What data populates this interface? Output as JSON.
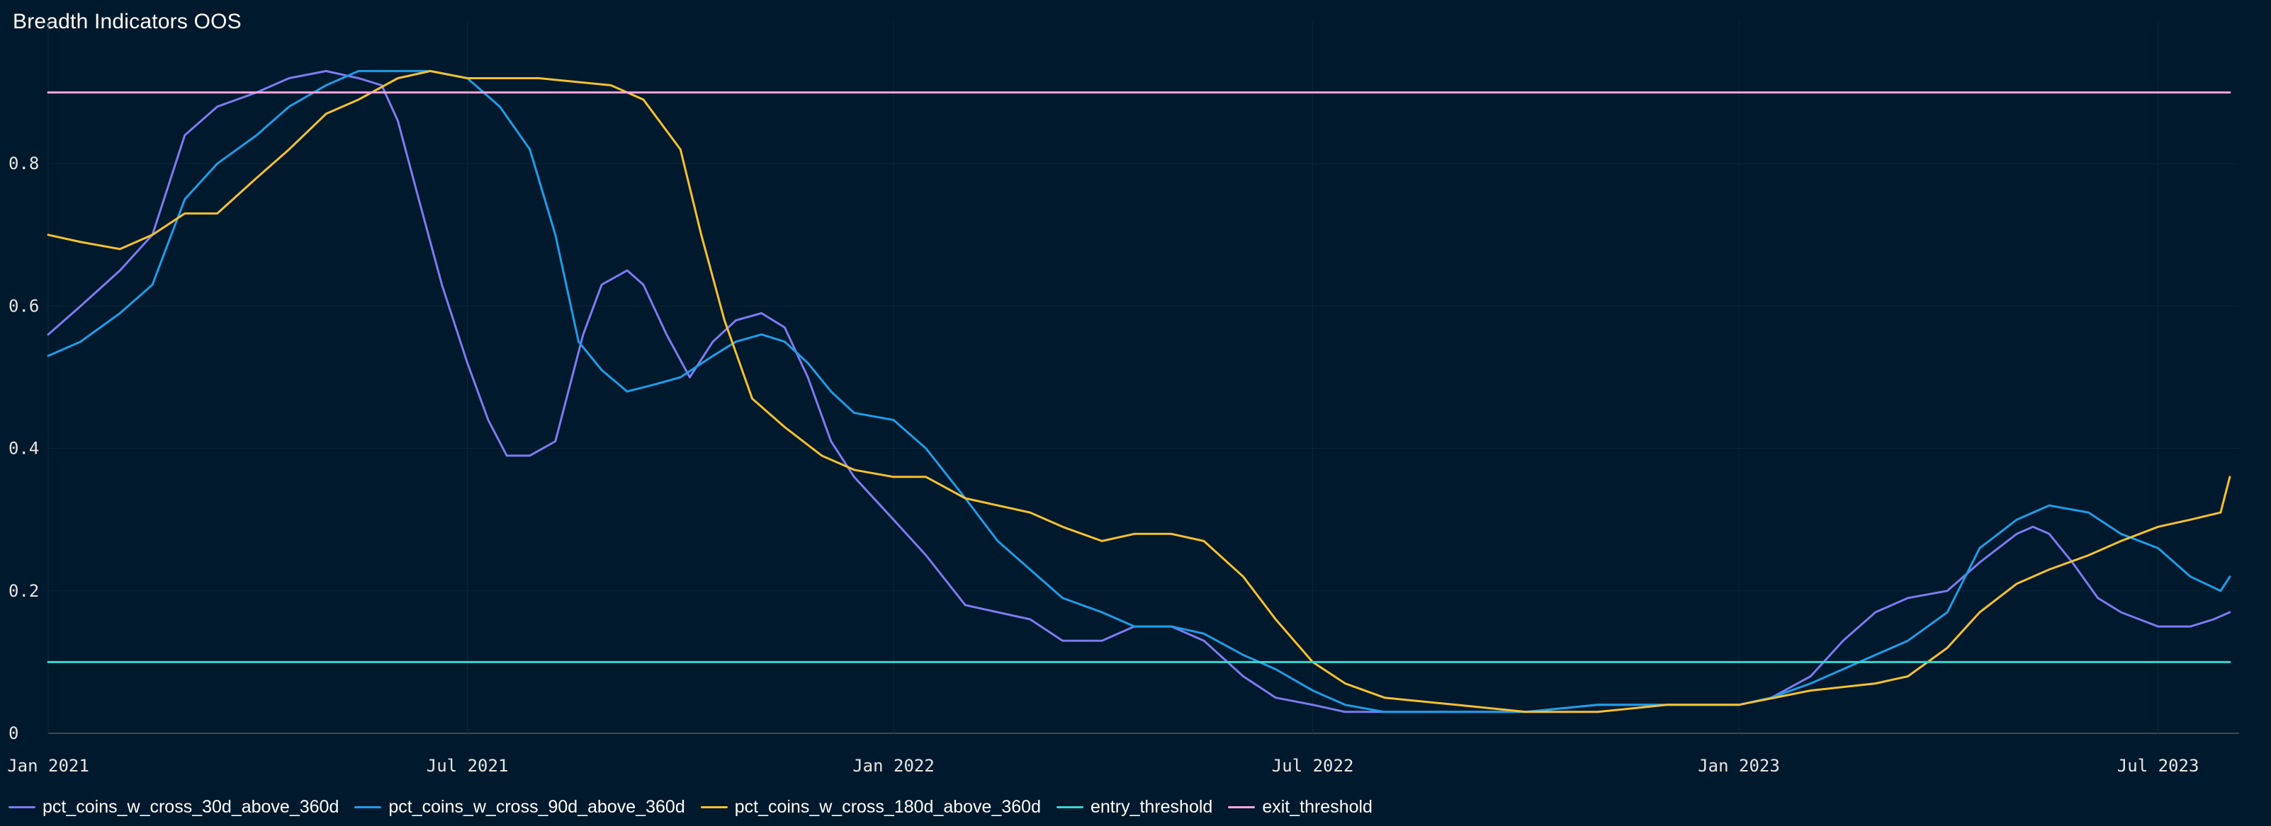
{
  "chart_data": {
    "type": "line",
    "title": "Breadth Indicators OOS",
    "xlabel": "",
    "ylabel": "",
    "x_ticks": [
      "Jan 2021",
      "Jul 2021",
      "Jan 2022",
      "Jul 2022",
      "Jan 2023",
      "Jul 2023"
    ],
    "y_ticks": [
      "0",
      "0.2",
      "0.4",
      "0.6",
      "0.8"
    ],
    "xlim": [
      "2021-01-01",
      "2023-08-05"
    ],
    "ylim": [
      0,
      1.0
    ],
    "grid": true,
    "legend_position": "bottom-left",
    "series": [
      {
        "name": "pct_coins_w_cross_30d_above_360d",
        "color": "#7b7bf0",
        "points": [
          [
            "2021-01-01",
            0.56
          ],
          [
            "2021-01-15",
            0.6
          ],
          [
            "2021-02-01",
            0.65
          ],
          [
            "2021-02-15",
            0.7
          ],
          [
            "2021-03-01",
            0.84
          ],
          [
            "2021-03-15",
            0.88
          ],
          [
            "2021-04-01",
            0.9
          ],
          [
            "2021-04-15",
            0.92
          ],
          [
            "2021-05-01",
            0.93
          ],
          [
            "2021-05-15",
            0.92
          ],
          [
            "2021-05-25",
            0.91
          ],
          [
            "2021-06-01",
            0.86
          ],
          [
            "2021-06-10",
            0.75
          ],
          [
            "2021-06-20",
            0.63
          ],
          [
            "2021-07-01",
            0.52
          ],
          [
            "2021-07-10",
            0.44
          ],
          [
            "2021-07-18",
            0.39
          ],
          [
            "2021-07-28",
            0.39
          ],
          [
            "2021-08-08",
            0.41
          ],
          [
            "2021-08-20",
            0.56
          ],
          [
            "2021-08-28",
            0.63
          ],
          [
            "2021-09-08",
            0.65
          ],
          [
            "2021-09-15",
            0.63
          ],
          [
            "2021-09-25",
            0.56
          ],
          [
            "2021-10-05",
            0.5
          ],
          [
            "2021-10-15",
            0.55
          ],
          [
            "2021-10-25",
            0.58
          ],
          [
            "2021-11-05",
            0.59
          ],
          [
            "2021-11-15",
            0.57
          ],
          [
            "2021-11-25",
            0.5
          ],
          [
            "2021-12-05",
            0.41
          ],
          [
            "2021-12-15",
            0.36
          ],
          [
            "2022-01-01",
            0.3
          ],
          [
            "2022-01-15",
            0.25
          ],
          [
            "2022-02-01",
            0.18
          ],
          [
            "2022-02-15",
            0.17
          ],
          [
            "2022-03-01",
            0.16
          ],
          [
            "2022-03-15",
            0.13
          ],
          [
            "2022-04-01",
            0.13
          ],
          [
            "2022-04-15",
            0.15
          ],
          [
            "2022-05-01",
            0.15
          ],
          [
            "2022-05-15",
            0.13
          ],
          [
            "2022-06-01",
            0.08
          ],
          [
            "2022-06-15",
            0.05
          ],
          [
            "2022-07-01",
            0.04
          ],
          [
            "2022-07-15",
            0.03
          ],
          [
            "2022-08-01",
            0.03
          ],
          [
            "2022-09-01",
            0.03
          ],
          [
            "2022-10-01",
            0.03
          ],
          [
            "2022-11-01",
            0.04
          ],
          [
            "2022-12-01",
            0.04
          ],
          [
            "2023-01-01",
            0.04
          ],
          [
            "2023-01-15",
            0.05
          ],
          [
            "2023-02-01",
            0.08
          ],
          [
            "2023-02-15",
            0.13
          ],
          [
            "2023-03-01",
            0.17
          ],
          [
            "2023-03-15",
            0.19
          ],
          [
            "2023-04-01",
            0.2
          ],
          [
            "2023-04-15",
            0.24
          ],
          [
            "2023-05-01",
            0.28
          ],
          [
            "2023-05-08",
            0.29
          ],
          [
            "2023-05-15",
            0.28
          ],
          [
            "2023-05-25",
            0.24
          ],
          [
            "2023-06-05",
            0.19
          ],
          [
            "2023-06-15",
            0.17
          ],
          [
            "2023-07-01",
            0.15
          ],
          [
            "2023-07-15",
            0.15
          ],
          [
            "2023-07-25",
            0.16
          ],
          [
            "2023-08-01",
            0.17
          ]
        ]
      },
      {
        "name": "pct_coins_w_cross_90d_above_360d",
        "color": "#1e9de8",
        "points": [
          [
            "2021-01-01",
            0.53
          ],
          [
            "2021-01-15",
            0.55
          ],
          [
            "2021-02-01",
            0.59
          ],
          [
            "2021-02-15",
            0.63
          ],
          [
            "2021-03-01",
            0.75
          ],
          [
            "2021-03-15",
            0.8
          ],
          [
            "2021-04-01",
            0.84
          ],
          [
            "2021-04-15",
            0.88
          ],
          [
            "2021-05-01",
            0.91
          ],
          [
            "2021-05-15",
            0.93
          ],
          [
            "2021-06-01",
            0.93
          ],
          [
            "2021-06-15",
            0.93
          ],
          [
            "2021-07-01",
            0.92
          ],
          [
            "2021-07-15",
            0.88
          ],
          [
            "2021-07-28",
            0.82
          ],
          [
            "2021-08-08",
            0.7
          ],
          [
            "2021-08-18",
            0.55
          ],
          [
            "2021-08-28",
            0.51
          ],
          [
            "2021-09-08",
            0.48
          ],
          [
            "2021-09-20",
            0.49
          ],
          [
            "2021-10-01",
            0.5
          ],
          [
            "2021-10-15",
            0.53
          ],
          [
            "2021-10-25",
            0.55
          ],
          [
            "2021-11-05",
            0.56
          ],
          [
            "2021-11-15",
            0.55
          ],
          [
            "2021-11-25",
            0.52
          ],
          [
            "2021-12-05",
            0.48
          ],
          [
            "2021-12-15",
            0.45
          ],
          [
            "2022-01-01",
            0.44
          ],
          [
            "2022-01-15",
            0.4
          ],
          [
            "2022-02-01",
            0.33
          ],
          [
            "2022-02-15",
            0.27
          ],
          [
            "2022-03-01",
            0.23
          ],
          [
            "2022-03-15",
            0.19
          ],
          [
            "2022-04-01",
            0.17
          ],
          [
            "2022-04-15",
            0.15
          ],
          [
            "2022-05-01",
            0.15
          ],
          [
            "2022-05-15",
            0.14
          ],
          [
            "2022-06-01",
            0.11
          ],
          [
            "2022-06-15",
            0.09
          ],
          [
            "2022-07-01",
            0.06
          ],
          [
            "2022-07-15",
            0.04
          ],
          [
            "2022-08-01",
            0.03
          ],
          [
            "2022-09-01",
            0.03
          ],
          [
            "2022-10-01",
            0.03
          ],
          [
            "2022-11-01",
            0.04
          ],
          [
            "2022-12-01",
            0.04
          ],
          [
            "2023-01-01",
            0.04
          ],
          [
            "2023-01-15",
            0.05
          ],
          [
            "2023-02-01",
            0.07
          ],
          [
            "2023-02-15",
            0.09
          ],
          [
            "2023-03-01",
            0.11
          ],
          [
            "2023-03-15",
            0.13
          ],
          [
            "2023-04-01",
            0.17
          ],
          [
            "2023-04-15",
            0.26
          ],
          [
            "2023-05-01",
            0.3
          ],
          [
            "2023-05-15",
            0.32
          ],
          [
            "2023-06-01",
            0.31
          ],
          [
            "2023-06-15",
            0.28
          ],
          [
            "2023-07-01",
            0.26
          ],
          [
            "2023-07-15",
            0.22
          ],
          [
            "2023-07-28",
            0.2
          ],
          [
            "2023-08-01",
            0.22
          ]
        ]
      },
      {
        "name": "pct_coins_w_cross_180d_above_360d",
        "color": "#f6c12f",
        "points": [
          [
            "2021-01-01",
            0.7
          ],
          [
            "2021-01-15",
            0.69
          ],
          [
            "2021-02-01",
            0.68
          ],
          [
            "2021-02-15",
            0.7
          ],
          [
            "2021-03-01",
            0.73
          ],
          [
            "2021-03-15",
            0.73
          ],
          [
            "2021-04-01",
            0.78
          ],
          [
            "2021-04-15",
            0.82
          ],
          [
            "2021-05-01",
            0.87
          ],
          [
            "2021-05-15",
            0.89
          ],
          [
            "2021-06-01",
            0.92
          ],
          [
            "2021-06-15",
            0.93
          ],
          [
            "2021-07-01",
            0.92
          ],
          [
            "2021-08-01",
            0.92
          ],
          [
            "2021-09-01",
            0.91
          ],
          [
            "2021-09-15",
            0.89
          ],
          [
            "2021-10-01",
            0.82
          ],
          [
            "2021-10-10",
            0.7
          ],
          [
            "2021-10-20",
            0.58
          ],
          [
            "2021-11-01",
            0.47
          ],
          [
            "2021-11-15",
            0.43
          ],
          [
            "2021-12-01",
            0.39
          ],
          [
            "2021-12-15",
            0.37
          ],
          [
            "2022-01-01",
            0.36
          ],
          [
            "2022-01-15",
            0.36
          ],
          [
            "2022-02-01",
            0.33
          ],
          [
            "2022-03-01",
            0.31
          ],
          [
            "2022-03-15",
            0.29
          ],
          [
            "2022-04-01",
            0.27
          ],
          [
            "2022-04-15",
            0.28
          ],
          [
            "2022-05-01",
            0.28
          ],
          [
            "2022-05-15",
            0.27
          ],
          [
            "2022-06-01",
            0.22
          ],
          [
            "2022-06-15",
            0.16
          ],
          [
            "2022-07-01",
            0.1
          ],
          [
            "2022-07-15",
            0.07
          ],
          [
            "2022-08-01",
            0.05
          ],
          [
            "2022-09-01",
            0.04
          ],
          [
            "2022-10-01",
            0.03
          ],
          [
            "2022-11-01",
            0.03
          ],
          [
            "2022-12-01",
            0.04
          ],
          [
            "2023-01-01",
            0.04
          ],
          [
            "2023-02-01",
            0.06
          ],
          [
            "2023-03-01",
            0.07
          ],
          [
            "2023-03-15",
            0.08
          ],
          [
            "2023-04-01",
            0.12
          ],
          [
            "2023-04-15",
            0.17
          ],
          [
            "2023-05-01",
            0.21
          ],
          [
            "2023-05-15",
            0.23
          ],
          [
            "2023-06-01",
            0.25
          ],
          [
            "2023-06-15",
            0.27
          ],
          [
            "2023-07-01",
            0.29
          ],
          [
            "2023-07-15",
            0.3
          ],
          [
            "2023-07-28",
            0.31
          ],
          [
            "2023-08-01",
            0.36
          ]
        ]
      },
      {
        "name": "entry_threshold",
        "color": "#3dd5d0",
        "points": [
          [
            "2021-01-01",
            0.1
          ],
          [
            "2023-08-01",
            0.1
          ]
        ]
      },
      {
        "name": "exit_threshold",
        "color": "#f4a6dd",
        "points": [
          [
            "2021-01-01",
            0.9
          ],
          [
            "2023-08-01",
            0.9
          ]
        ]
      }
    ]
  }
}
